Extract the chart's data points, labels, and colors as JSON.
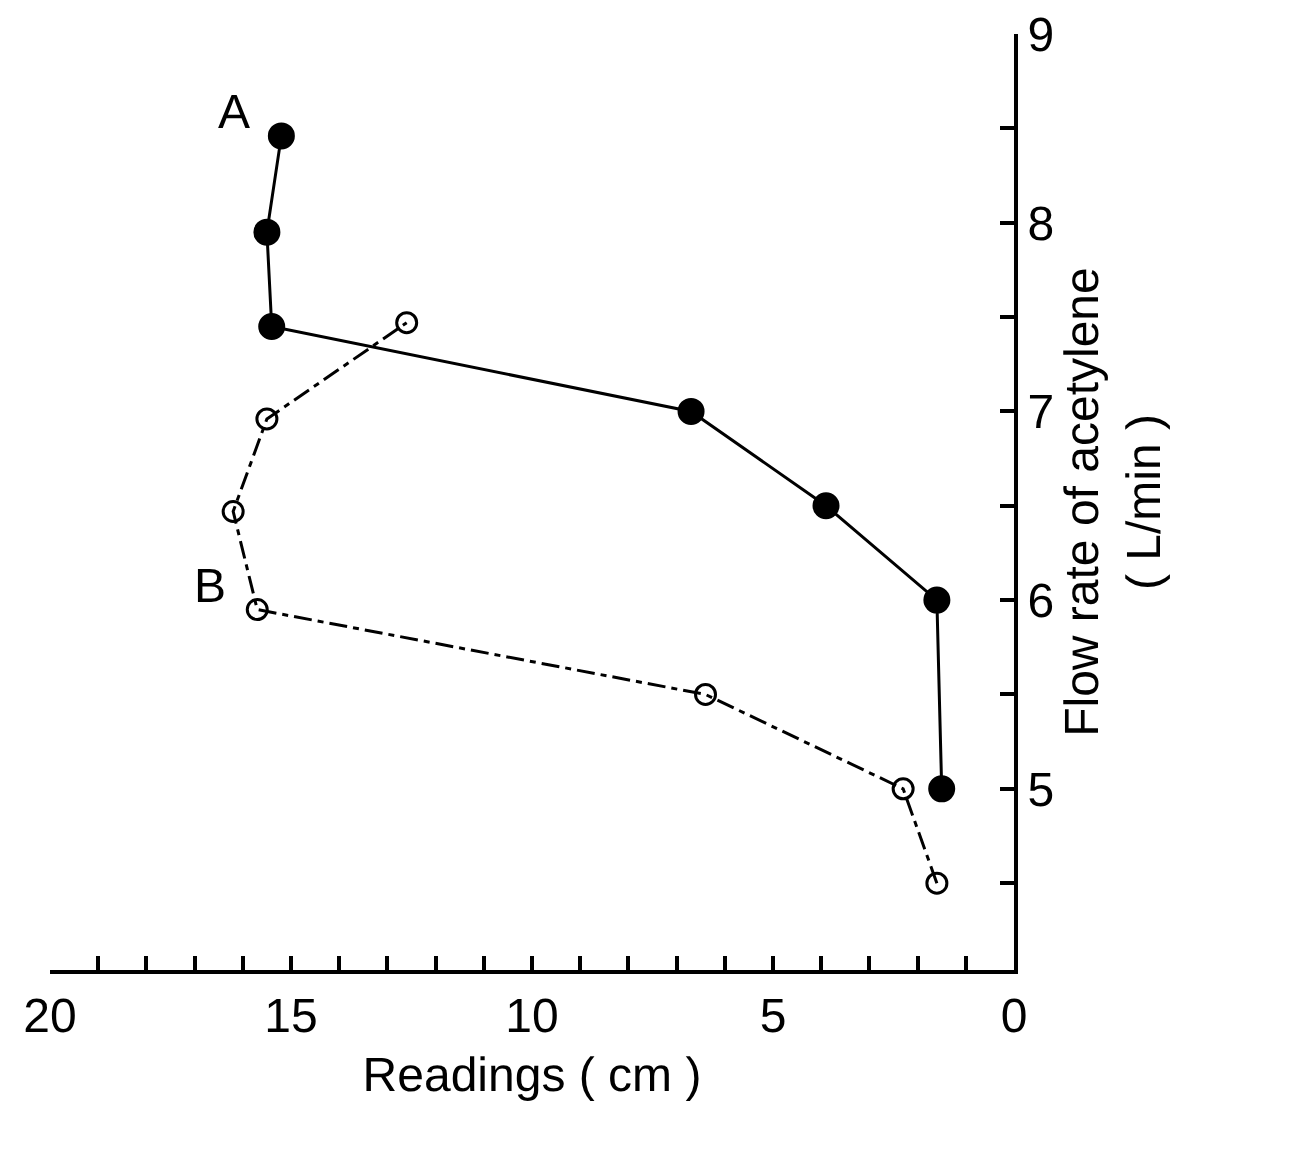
{
  "chart_data": {
    "type": "line",
    "xlabel": "Readings ( cm )",
    "ylabel": "Flow rate of acetylene\n( L/min )",
    "ylim": [
      4.04,
      9
    ],
    "yticks": [
      {
        "value": 4.5,
        "label": null
      },
      5,
      {
        "value": 5.5,
        "label": null
      },
      6,
      {
        "value": 6.5,
        "label": null
      },
      7,
      {
        "value": 7.5,
        "label": null
      },
      8,
      {
        "value": 8.5,
        "label": null
      },
      9
    ],
    "xlim": [
      20,
      0
    ],
    "xticks": [
      0,
      {
        "value": 1,
        "label": null
      },
      {
        "value": 2,
        "label": null
      },
      {
        "value": 3,
        "label": null
      },
      {
        "value": 4,
        "label": null
      },
      5,
      {
        "value": 6,
        "label": null
      },
      {
        "value": 7,
        "label": null
      },
      {
        "value": 8,
        "label": null
      },
      {
        "value": 9,
        "label": null
      },
      10,
      {
        "value": 11,
        "label": null
      },
      {
        "value": 12,
        "label": null
      },
      {
        "value": 13,
        "label": null
      },
      {
        "value": 14,
        "label": null
      },
      15,
      {
        "value": 16,
        "label": null
      },
      {
        "value": 17,
        "label": null
      },
      {
        "value": 18,
        "label": null
      },
      {
        "value": 19,
        "label": null
      },
      20
    ],
    "grid": false,
    "series": [
      {
        "color": "#000000",
        "marker": "circle",
        "line_style": "solid",
        "x": [
          1.5,
          1.6,
          3.9,
          6.7,
          15.4,
          15.5,
          15.2
        ],
        "values": [
          5.0,
          6.0,
          6.5,
          7.0,
          7.45,
          7.95,
          8.46
        ]
      },
      {
        "color": "#000000",
        "marker": "circle-open",
        "line_style": "dashdot",
        "x": [
          1.6,
          2.3,
          6.4,
          15.7,
          16.2,
          15.5,
          12.6
        ],
        "values": [
          4.5,
          5.0,
          5.5,
          5.95,
          6.47,
          6.96,
          7.47
        ]
      }
    ],
    "annotations": [
      {
        "text": "A",
        "x": 15.2,
        "y": 8.46
      },
      {
        "text": "B",
        "x": 15.7,
        "y": 5.95
      }
    ]
  }
}
